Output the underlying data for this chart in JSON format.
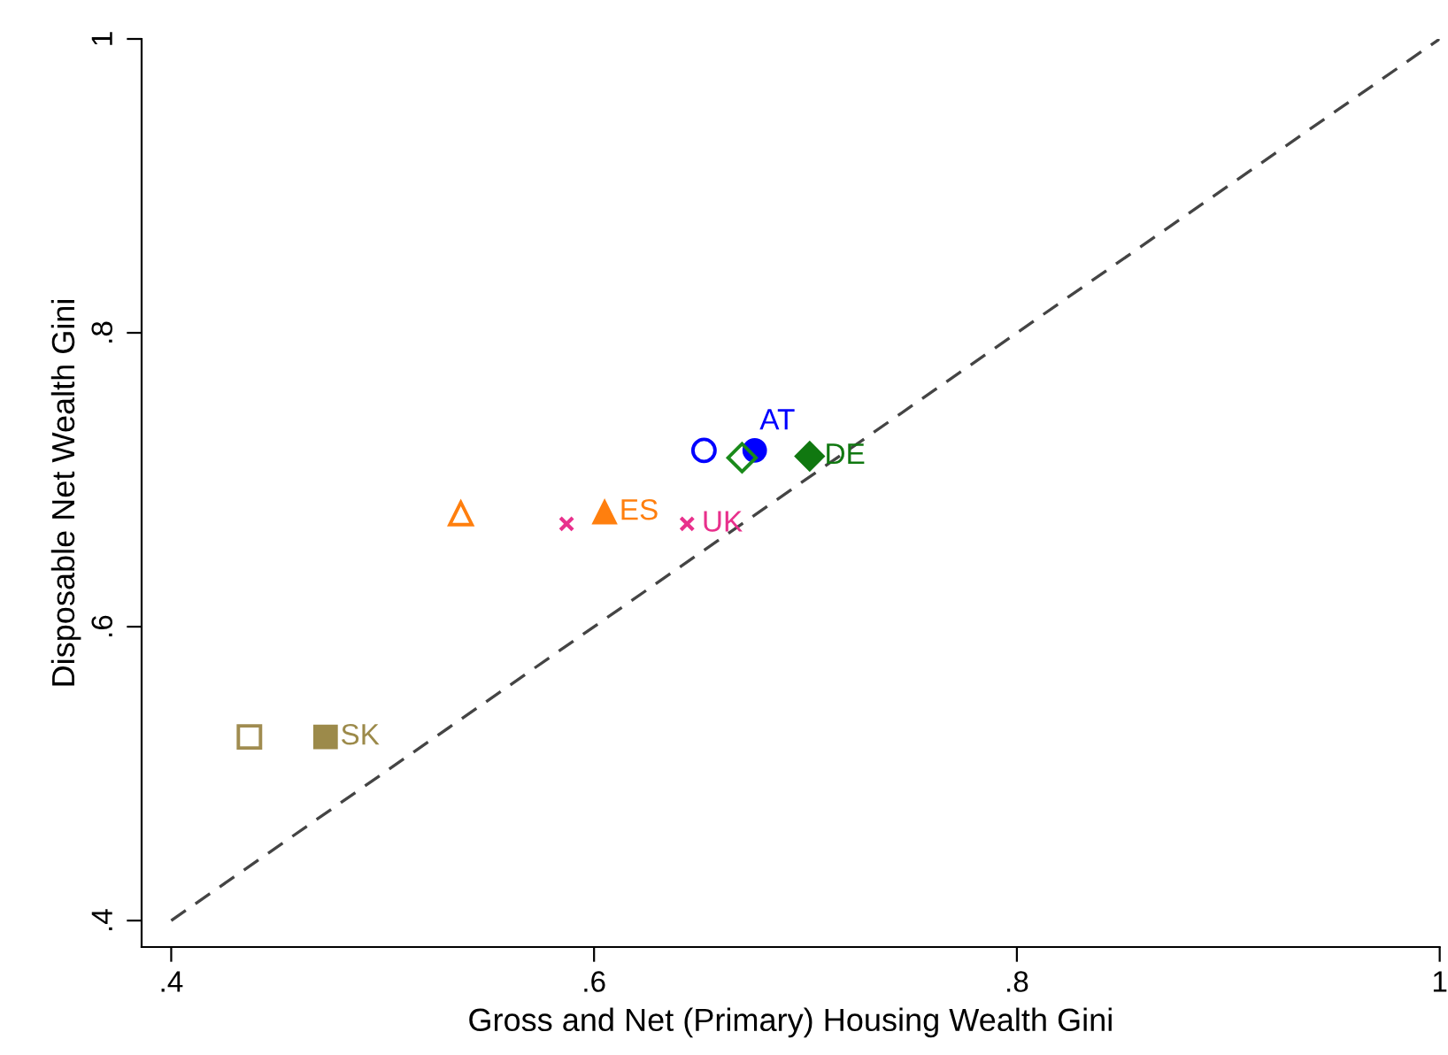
{
  "chart_data": {
    "type": "scatter",
    "xlabel": "Gross and Net (Primary) Housing Wealth Gini",
    "ylabel": "Disposable Net Wealth Gini",
    "xlim": [
      0.386,
      1.0
    ],
    "ylim": [
      0.382,
      1.0
    ],
    "xticks": [
      {
        "value": 0.4,
        "label": ".4"
      },
      {
        "value": 0.6,
        "label": ".6"
      },
      {
        "value": 0.8,
        "label": ".8"
      },
      {
        "value": 1,
        "label": "1"
      }
    ],
    "yticks": [
      {
        "value": 0.4,
        "label": ".4"
      },
      {
        "value": 0.6,
        "label": ".6"
      },
      {
        "value": 0.8,
        "label": ".8"
      },
      {
        "value": 1,
        "label": "1"
      }
    ],
    "grid": false,
    "legend": false,
    "series": [
      {
        "color": "#0000ff",
        "marker": "circle",
        "x": [
          0.652
        ],
        "values": [
          0.72
        ]
      },
      {
        "name": "AT",
        "color": "#0000ff",
        "marker": "circle",
        "x": [
          0.676
        ],
        "values": [
          0.72
        ]
      },
      {
        "color": "#1a8a1a",
        "marker": "diamond",
        "x": [
          0.67
        ],
        "values": [
          0.715
        ]
      },
      {
        "name": "DE",
        "color": "#107810",
        "marker": "diamond",
        "x": [
          0.702
        ],
        "values": [
          0.716
        ]
      },
      {
        "color": "#ff7f0e",
        "marker": "triangle",
        "x": [
          0.537
        ],
        "values": [
          0.677
        ]
      },
      {
        "name": "ES",
        "color": "#ff7f0e",
        "marker": "triangle",
        "x": [
          0.605
        ],
        "values": [
          0.678
        ]
      },
      {
        "color": "#e8308c",
        "marker": "cross",
        "x": [
          0.587
        ],
        "values": [
          0.67
        ]
      },
      {
        "name": "UK",
        "color": "#e8308c",
        "marker": "cross",
        "x": [
          0.644
        ],
        "values": [
          0.67
        ]
      },
      {
        "color": "#a08c50",
        "marker": "square",
        "x": [
          0.437
        ],
        "values": [
          0.525
        ]
      },
      {
        "name": "SK",
        "color": "#9c8a4a",
        "marker": "square",
        "x": [
          0.473
        ],
        "values": [
          0.525
        ]
      },
      {
        "type": "line",
        "color": "#444444",
        "line_style": "dashed",
        "marker": "none",
        "x": [
          0.4,
          1.0
        ],
        "values": [
          0.4,
          1.0
        ]
      }
    ]
  }
}
